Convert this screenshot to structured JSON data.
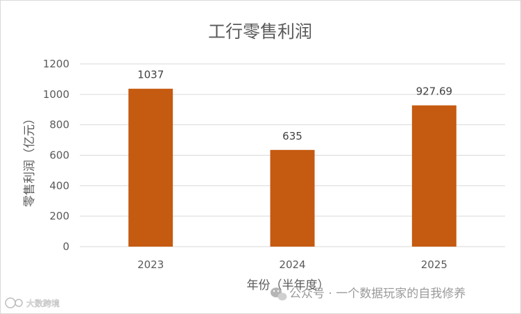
{
  "chart_data": {
    "type": "bar",
    "title": "工行零售利润",
    "xlabel": "年份（半年度）",
    "ylabel": "零售利润（亿元）",
    "categories": [
      "2023",
      "2024",
      "2025"
    ],
    "values": [
      1037,
      635,
      927.69
    ],
    "data_labels": [
      "1037",
      "635",
      "927.69"
    ],
    "ylim": [
      0,
      1200
    ],
    "yticks": [
      "0",
      "200",
      "400",
      "600",
      "800",
      "1000",
      "1200"
    ],
    "grid": true,
    "legend": "none",
    "bar_color": "#c55a11"
  },
  "watermark": {
    "text": "公众号 · 一个数据玩家的自我修养",
    "corner_text": "大数跨境",
    "icon": "wechat-icon"
  }
}
